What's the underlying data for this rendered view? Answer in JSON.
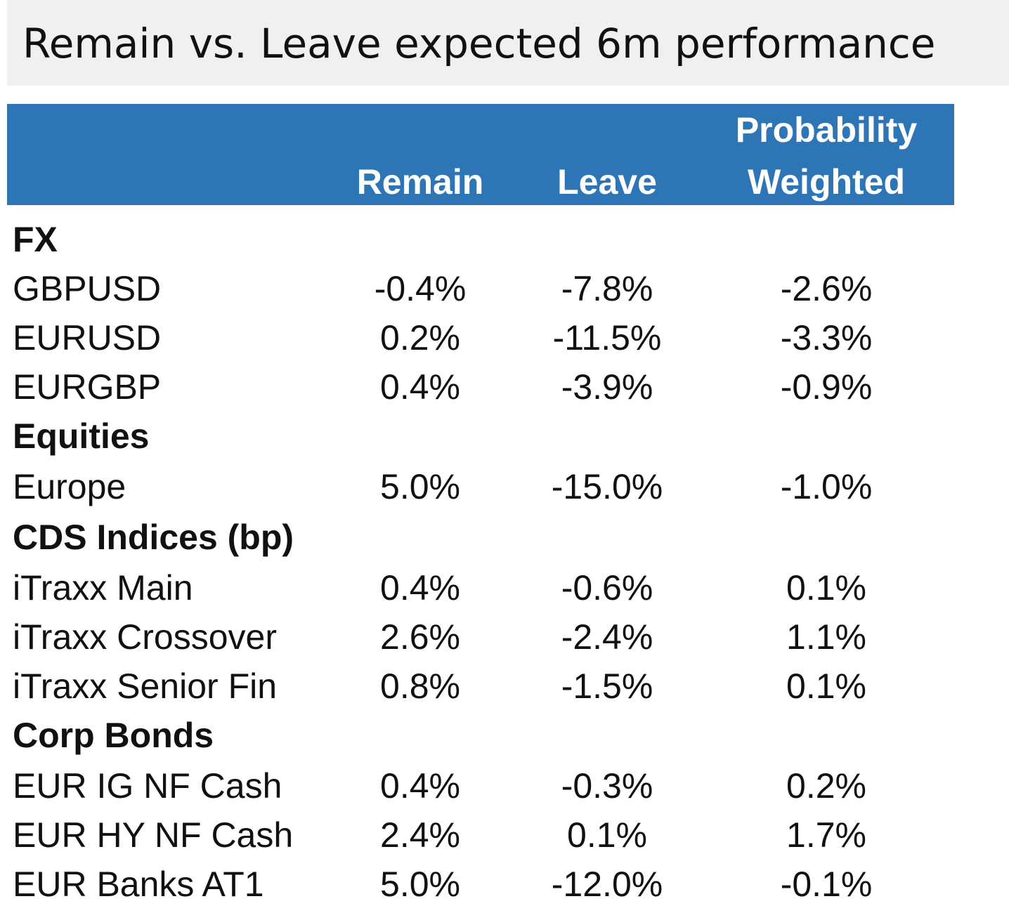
{
  "chart_data": {
    "type": "table",
    "title": "Remain vs. Leave expected 6m performance",
    "columns": [
      "Remain",
      "Leave",
      "Probability Weighted"
    ],
    "header_lines": {
      "remain": "Remain",
      "leave": "Leave",
      "prob_line1": "Probability",
      "prob_line2": "Weighted"
    },
    "rows": [
      {
        "kind": "section",
        "label": "FX"
      },
      {
        "kind": "data",
        "label": "GBPUSD",
        "remain": "-0.4%",
        "leave": "-7.8%",
        "weighted": "-2.6%"
      },
      {
        "kind": "data",
        "label": "EURUSD",
        "remain": "0.2%",
        "leave": "-11.5%",
        "weighted": "-3.3%"
      },
      {
        "kind": "data",
        "label": "EURGBP",
        "remain": "0.4%",
        "leave": "-3.9%",
        "weighted": "-0.9%"
      },
      {
        "kind": "section",
        "label": "Equities"
      },
      {
        "kind": "data",
        "label": "Europe",
        "remain": "5.0%",
        "leave": "-15.0%",
        "weighted": "-1.0%"
      },
      {
        "kind": "section",
        "label": "CDS Indices (bp)"
      },
      {
        "kind": "data",
        "label": "iTraxx Main",
        "remain": "0.4%",
        "leave": "-0.6%",
        "weighted": "0.1%"
      },
      {
        "kind": "data",
        "label": "iTraxx Crossover",
        "remain": "2.6%",
        "leave": "-2.4%",
        "weighted": "1.1%"
      },
      {
        "kind": "data",
        "label": "iTraxx Senior Fin",
        "remain": "0.8%",
        "leave": "-1.5%",
        "weighted": "0.1%"
      },
      {
        "kind": "section",
        "label": "Corp Bonds"
      },
      {
        "kind": "data",
        "label": "EUR IG NF Cash",
        "remain": "0.4%",
        "leave": "-0.3%",
        "weighted": "0.2%"
      },
      {
        "kind": "data",
        "label": "EUR HY NF Cash",
        "remain": "2.4%",
        "leave": "0.1%",
        "weighted": "1.7%"
      },
      {
        "kind": "data",
        "label": "EUR Banks AT1",
        "remain": "5.0%",
        "leave": "-12.0%",
        "weighted": "-0.1%"
      }
    ]
  },
  "colors": {
    "header_band": "#2e75b6",
    "header_text": "#ffffff",
    "title_band": "#f0f0f0",
    "text": "#111111"
  }
}
